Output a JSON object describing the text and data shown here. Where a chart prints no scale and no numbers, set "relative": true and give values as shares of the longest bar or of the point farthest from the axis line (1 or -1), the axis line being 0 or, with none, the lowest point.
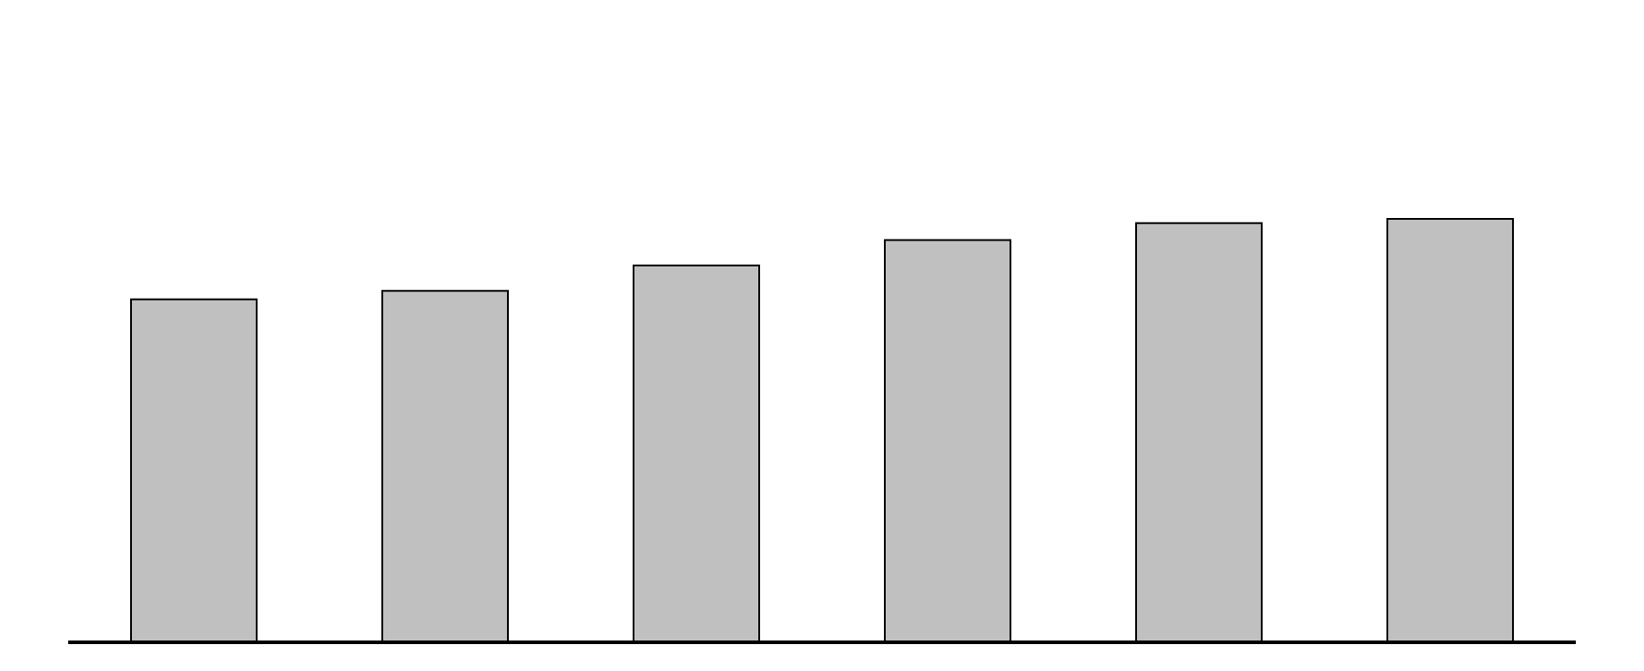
{
  "chart_data": {
    "type": "bar",
    "relative": true,
    "categories": [
      null,
      null,
      null,
      null,
      null,
      null
    ],
    "values": [
      0.81,
      0.83,
      0.89,
      0.95,
      0.99,
      1
    ],
    "color": "#c0c0c0"
  }
}
